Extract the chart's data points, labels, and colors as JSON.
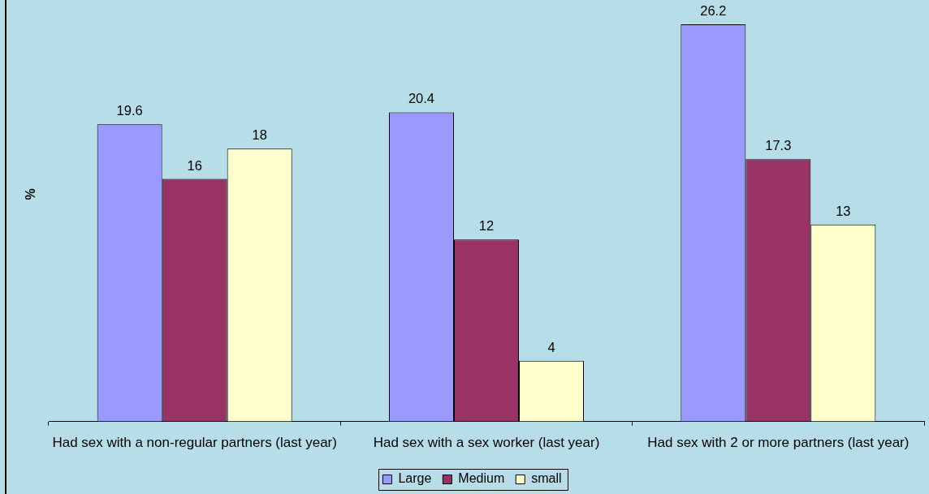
{
  "chart_data": {
    "type": "bar",
    "ylabel": "%",
    "categories": [
      "Had sex with a non-regular partners (last year)",
      "Had sex with a sex worker (last year)",
      "Had sex with 2 or more partners (last year)"
    ],
    "series": [
      {
        "name": "Large",
        "color": "#9999ff",
        "values": [
          19.6,
          20.4,
          26.2
        ]
      },
      {
        "name": "Medium",
        "color": "#993366",
        "values": [
          16,
          12,
          17.3
        ]
      },
      {
        "name": "small",
        "color": "#ffffcc",
        "values": [
          18,
          4,
          13
        ]
      }
    ],
    "data_labels": true,
    "legend": "bottom",
    "tick_labels": "x"
  }
}
